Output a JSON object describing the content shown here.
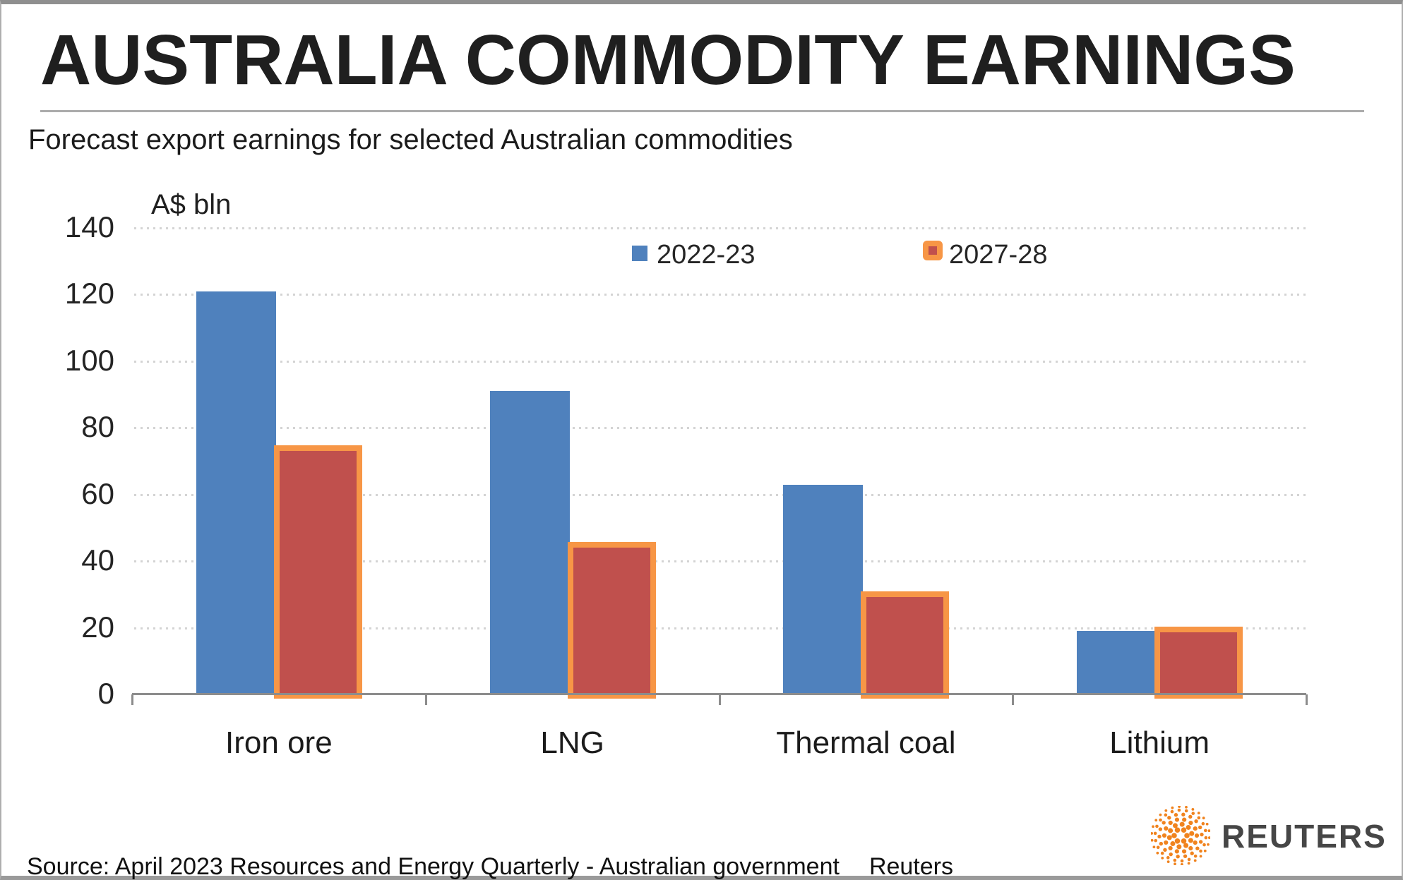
{
  "header": {
    "title": "AUSTRALIA COMMODITY EARNINGS",
    "subtitle": "Forecast export earnings for selected Australian commodities"
  },
  "chart_data": {
    "type": "bar",
    "title": "AUSTRALIA COMMODITY EARNINGS",
    "subtitle": "Forecast export earnings for selected Australian commodities",
    "unit_label": "A$ bln",
    "categories": [
      "Iron ore",
      "LNG",
      "Thermal coal",
      "Lithium"
    ],
    "series": [
      {
        "name": "2022-23",
        "color": "#4F81BD",
        "values": [
          121,
          91,
          63,
          19
        ]
      },
      {
        "name": "2027-28",
        "color": "#C0504D",
        "border_color": "#F79646",
        "values": [
          74,
          45,
          30,
          19.5
        ]
      }
    ],
    "ylim": [
      0,
      140
    ],
    "yticks": [
      0,
      20,
      40,
      60,
      80,
      100,
      120,
      140
    ],
    "grid": "horizontal-dotted",
    "legend_position": "top-inside",
    "gridline_color": "#D4D4D4",
    "axis_color": "#8C8C8C"
  },
  "footer": {
    "source": "Source: April 2023 Resources and Energy Quarterly - Australian government",
    "credit": "Reuters",
    "brand": "REUTERS"
  },
  "colors": {
    "series1_blue": "#4F81BD",
    "series2_red": "#C0504D",
    "series2_border_orange": "#F79646",
    "reuters_orange": "#F0831E",
    "frame_gray": "#8F8F8F"
  }
}
